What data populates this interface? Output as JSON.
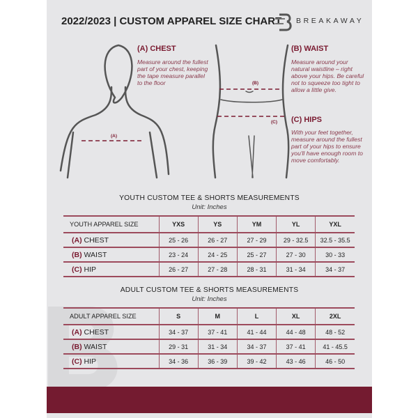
{
  "header": {
    "title": "2022/2023  |  CUSTOM APPAREL SIZE CHART",
    "brand": "BREAKAWAY"
  },
  "guide": {
    "chest": {
      "label": "(A)",
      "heading": "(A) CHEST",
      "text": "Measure around the fullest part of your chest, keeping the tape measure parallel to the floor"
    },
    "waist": {
      "label": "(B)",
      "heading": "(B) WAIST",
      "text": "Measure around your natural waistline – right above your hips. Be careful not to squeeze too tight to allow a little give."
    },
    "hips": {
      "label": "(C)",
      "heading": "(C) HIPS",
      "text": "With your feet together, measure around the fullest part of your hips to ensure you'll have enough room to move comfortably."
    }
  },
  "youth": {
    "title": "YOUTH CUSTOM TEE & SHORTS MEASUREMENTS",
    "unit": "Unit: Inches",
    "columns": [
      "YOUTH APPAREL SIZE",
      "YXS",
      "YS",
      "YM",
      "YL",
      "YXL"
    ],
    "rows": [
      {
        "key": "(A)",
        "label": "CHEST",
        "values": [
          "25 - 26",
          "26 - 27",
          "27 - 29",
          "29 - 32.5",
          "32.5 - 35.5"
        ]
      },
      {
        "key": "(B)",
        "label": "WAIST",
        "values": [
          "23 - 24",
          "24 - 25",
          "25 - 27",
          "27 - 30",
          "30 - 33"
        ]
      },
      {
        "key": "(C)",
        "label": "HIP",
        "values": [
          "26 - 27",
          "27 - 28",
          "28 - 31",
          "31 - 34",
          "34 - 37"
        ]
      }
    ]
  },
  "adult": {
    "title": "ADULT CUSTOM TEE & SHORTS MEASUREMENTS",
    "unit": "Unit: Inches",
    "columns": [
      "ADULT APPAREL SIZE",
      "S",
      "M",
      "L",
      "XL",
      "2XL"
    ],
    "rows": [
      {
        "key": "(A)",
        "label": "CHEST",
        "values": [
          "34 - 37",
          "37 - 41",
          "41 - 44",
          "44 - 48",
          "48 - 52"
        ]
      },
      {
        "key": "(B)",
        "label": "WAIST",
        "values": [
          "29 - 31",
          "31 - 34",
          "34 - 37",
          "37 - 41",
          "41 - 45.5"
        ]
      },
      {
        "key": "(C)",
        "label": "HIP",
        "values": [
          "34 - 36",
          "36 - 39",
          "39 - 42",
          "43 - 46",
          "46 - 50"
        ]
      }
    ]
  },
  "colors": {
    "accent": "#741b30",
    "background": "#e6e6e8"
  }
}
